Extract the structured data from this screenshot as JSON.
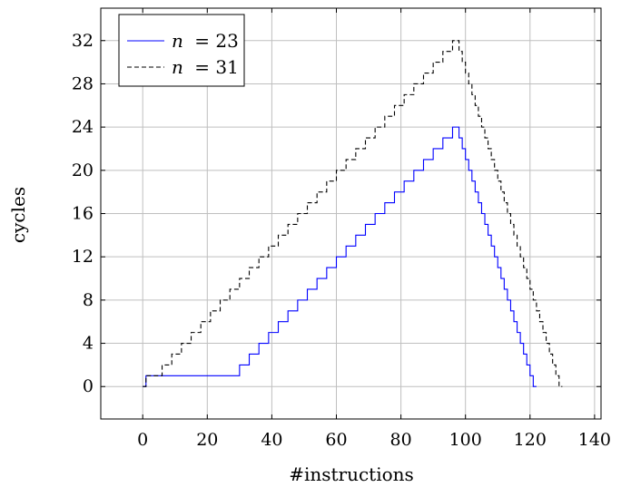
{
  "chart_data": {
    "type": "line",
    "title": "",
    "xlabel": "#instructions",
    "ylabel": "cycles",
    "xlim": [
      -13,
      142
    ],
    "ylim": [
      -3,
      35
    ],
    "xticks": [
      0,
      20,
      40,
      60,
      80,
      100,
      120,
      140
    ],
    "yticks": [
      0,
      4,
      8,
      12,
      16,
      20,
      24,
      28,
      32
    ],
    "grid": true,
    "legend_position": "top-left",
    "series": [
      {
        "name": "n = 23",
        "legend_var": "n",
        "legend_eq": "= 23",
        "color": "#0000ff",
        "dash": "solid",
        "step": true,
        "x": [
          0,
          1,
          30,
          33,
          36,
          39,
          42,
          45,
          48,
          51,
          54,
          57,
          60,
          63,
          66,
          69,
          72,
          75,
          78,
          81,
          84,
          87,
          90,
          93,
          96,
          98,
          99,
          100,
          101,
          102,
          103,
          104,
          105,
          106,
          107,
          108,
          109,
          110,
          111,
          112,
          113,
          114,
          115,
          116,
          117,
          118,
          119,
          120,
          121,
          122
        ],
        "y": [
          0,
          1,
          2,
          3,
          4,
          5,
          6,
          7,
          8,
          9,
          10,
          11,
          12,
          13,
          14,
          15,
          16,
          17,
          18,
          19,
          20,
          21,
          22,
          23,
          24,
          23,
          22,
          21,
          20,
          19,
          18,
          17,
          16,
          15,
          14,
          13,
          12,
          11,
          10,
          9,
          8,
          7,
          6,
          5,
          4,
          3,
          2,
          1,
          0,
          0
        ]
      },
      {
        "name": "n = 31",
        "legend_var": "n",
        "legend_eq": "= 31",
        "color": "#000000",
        "dash": "dashed",
        "step": true,
        "x": [
          0,
          1,
          6,
          9,
          12,
          15,
          18,
          21,
          24,
          27,
          30,
          33,
          36,
          39,
          42,
          45,
          48,
          51,
          54,
          57,
          60,
          63,
          66,
          69,
          72,
          75,
          78,
          81,
          84,
          87,
          90,
          93,
          96,
          98,
          99,
          100,
          101,
          102,
          103,
          104,
          105,
          106,
          107,
          108,
          109,
          110,
          111,
          112,
          113,
          114,
          115,
          116,
          117,
          118,
          119,
          120,
          121,
          122,
          123,
          124,
          125,
          126,
          127,
          128,
          129,
          130
        ],
        "y": [
          0,
          1,
          2,
          3,
          4,
          5,
          6,
          7,
          8,
          9,
          10,
          11,
          12,
          13,
          14,
          15,
          16,
          17,
          18,
          19,
          20,
          21,
          22,
          23,
          24,
          25,
          26,
          27,
          28,
          29,
          30,
          31,
          32,
          31,
          30,
          29,
          28,
          27,
          26,
          25,
          24,
          23,
          22,
          21,
          20,
          19,
          18,
          17,
          16,
          15,
          14,
          13,
          12,
          11,
          10,
          9,
          8,
          7,
          6,
          5,
          4,
          3,
          2,
          1,
          0,
          0
        ]
      }
    ]
  }
}
